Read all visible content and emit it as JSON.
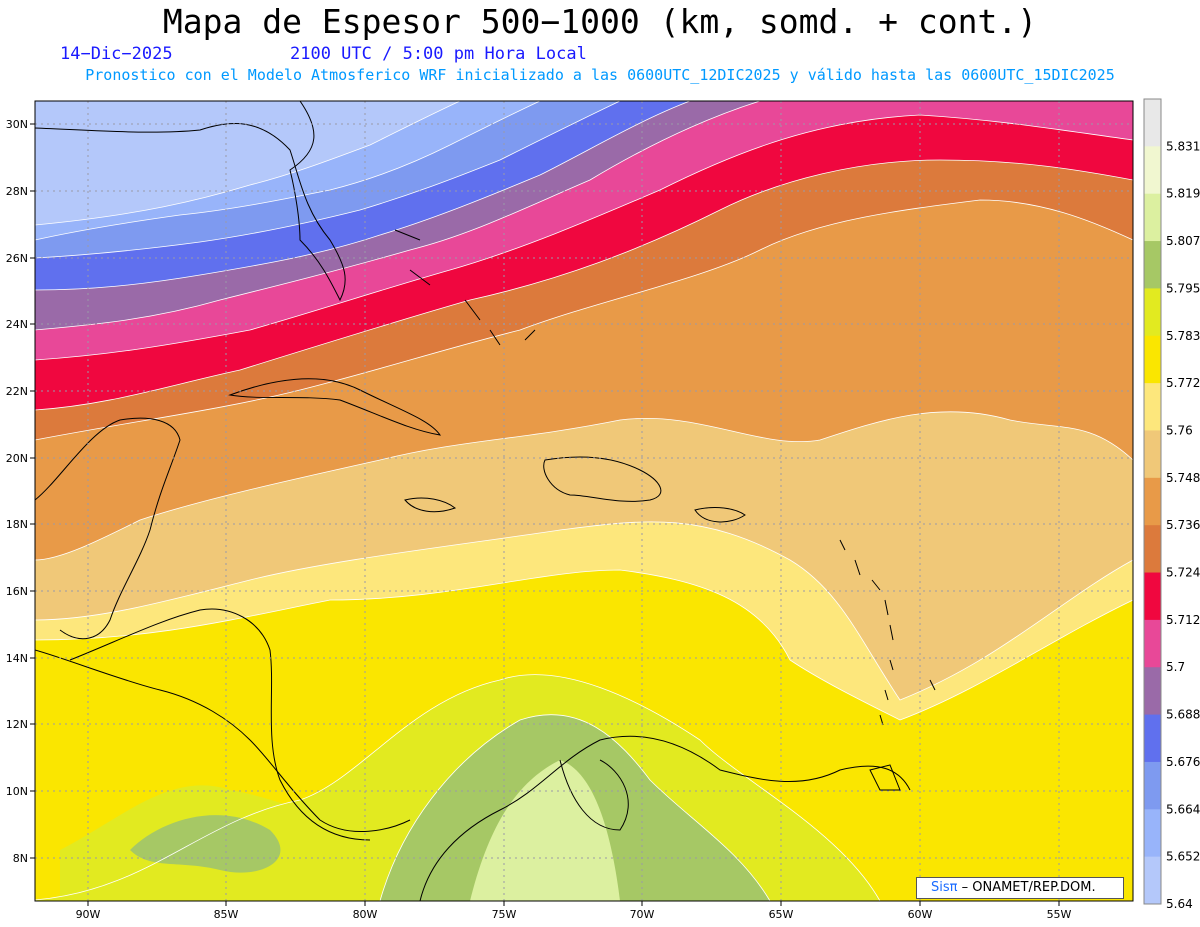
{
  "header": {
    "title": "Mapa de Espesor 500−1000 (km, somd. + cont.)",
    "date": "14−Dic−2025",
    "time": "2100 UTC / 5:00 pm Hora Local",
    "model_line": "Pronostico con el Modelo Atmosferico WRF inicializado a las 0600UTC_12DIC2025 y válido hasta las  0600UTC_15DIC2025"
  },
  "map": {
    "lon_labels": [
      "90W",
      "85W",
      "80W",
      "75W",
      "70W",
      "65W",
      "60W",
      "55W"
    ],
    "lat_labels": [
      "30N",
      "28N",
      "26N",
      "24N",
      "22N",
      "20N",
      "18N",
      "16N",
      "14N",
      "12N",
      "10N",
      "8N"
    ],
    "lon_range": [
      -92,
      -53
    ],
    "lat_range": [
      6.8,
      30.6
    ]
  },
  "colorbar": {
    "levels": [
      "5.831",
      "5.819",
      "5.807",
      "5.795",
      "5.783",
      "5.772",
      "5.76",
      "5.748",
      "5.736",
      "5.724",
      "5.712",
      "5.7",
      "5.688",
      "5.676",
      "5.664",
      "5.652",
      "5.64"
    ],
    "colors": [
      "#e8e8e8",
      "#f1f7d0",
      "#dcf0a0",
      "#a6c865",
      "#e2ea20",
      "#fae600",
      "#fde77c",
      "#f0c878",
      "#e89a48",
      "#dc7a3c",
      "#f0073f",
      "#e84898",
      "#9a6aa8",
      "#6070ee",
      "#7e9af0",
      "#98b4fa",
      "#b4c8fa"
    ]
  },
  "credit": {
    "brand": "Sisπ",
    "text": "– ONAMET/REP.DOM."
  }
}
